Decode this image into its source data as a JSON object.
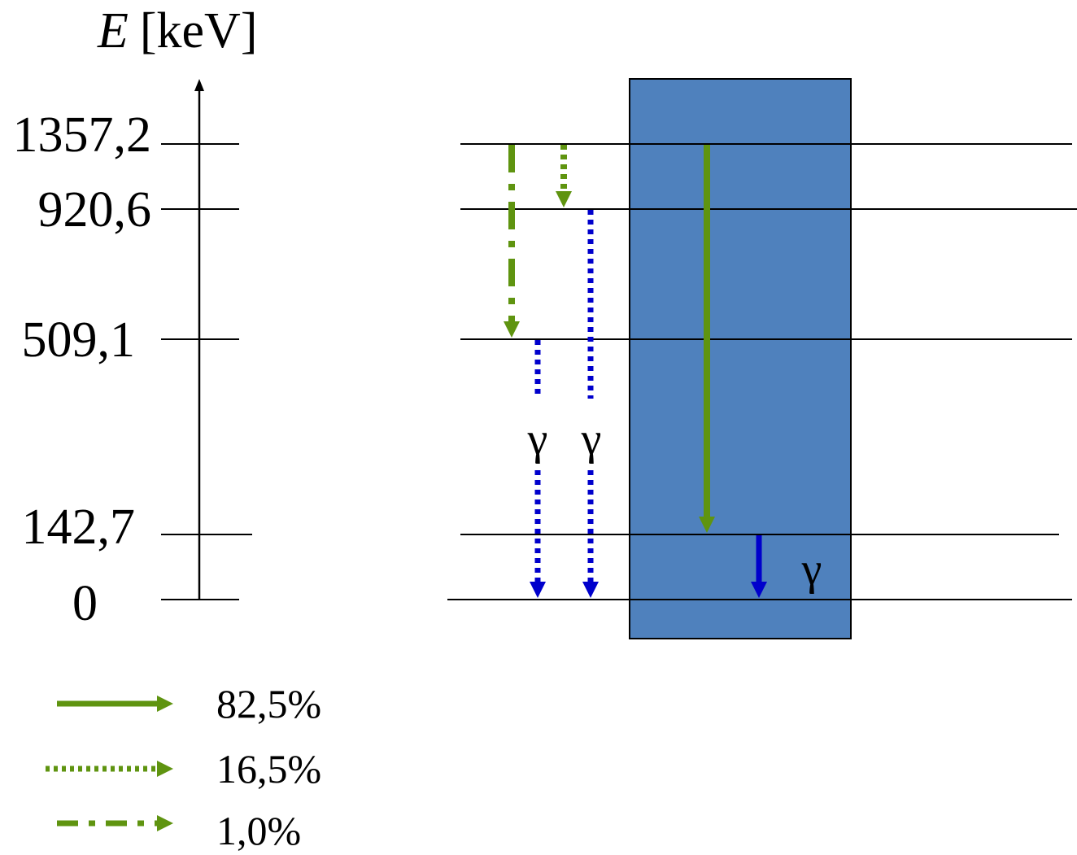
{
  "axis": {
    "symbol": "E",
    "unit": "[keV]"
  },
  "levels": [
    {
      "id": "lvl-1357",
      "energy_keV": 1357.2,
      "label": "1357,2"
    },
    {
      "id": "lvl-920",
      "energy_keV": 920.6,
      "label": "920,6"
    },
    {
      "id": "lvl-509",
      "energy_keV": 509.1,
      "label": "509,1"
    },
    {
      "id": "lvl-142",
      "energy_keV": 142.7,
      "label": "142,7"
    },
    {
      "id": "lvl-0",
      "energy_keV": 0,
      "label": "0"
    }
  ],
  "gamma_symbol": "γ",
  "legend": [
    {
      "style": "solid",
      "label": "82,5%"
    },
    {
      "style": "dotted",
      "label": "16,5%"
    },
    {
      "style": "dash-dot",
      "label": "1,0%"
    }
  ],
  "colors": {
    "beta_arrow": "#5f9410",
    "gamma_arrow": "#0000cc",
    "box_fill": "#4f81bd",
    "box_stroke": "#000000",
    "lines": "#000000"
  }
}
